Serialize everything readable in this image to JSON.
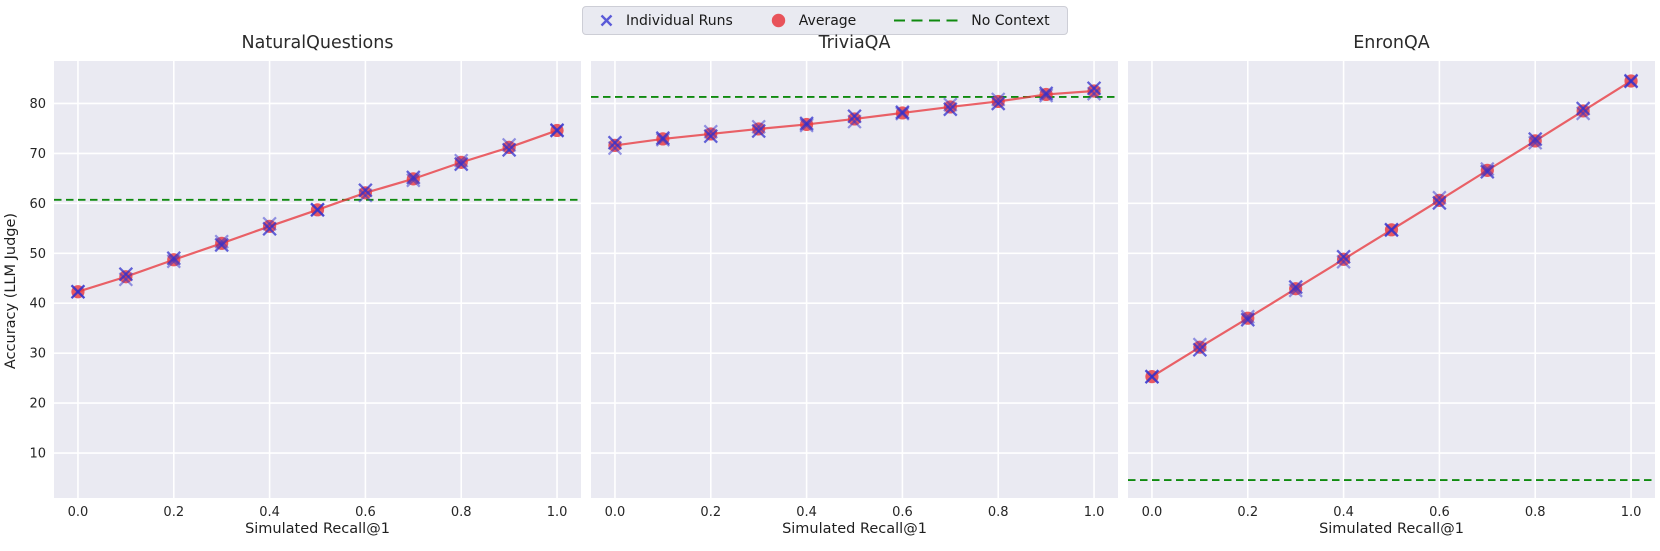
{
  "legend": {
    "position": "upper center (above subplots)",
    "items": [
      {
        "icon": "x-marker",
        "label": "Individual Runs",
        "color": "#5a5ad8"
      },
      {
        "icon": "circle-marker",
        "label": "Average",
        "color": "#e8383f"
      },
      {
        "icon": "dashed-line",
        "label": "No Context",
        "color": "#0f8a0f"
      }
    ]
  },
  "colors": {
    "panel_background": "#eaeaf2",
    "gridline": "#ffffff",
    "average_line": "#e8383f",
    "individual_runs": "#3232cd",
    "no_context_line": "#0f8a0f",
    "text": "#262626",
    "legend_background": "#e9eaf1",
    "legend_border": "#cdced6"
  },
  "chart_data": [
    {
      "type": "line",
      "title": "NaturalQuestions",
      "xlabel": "Simulated Recall@1",
      "ylabel": "Accuracy (LLM Judge)",
      "x": [
        0.0,
        0.1,
        0.2,
        0.3,
        0.4,
        0.5,
        0.6,
        0.7,
        0.8,
        0.9,
        1.0
      ],
      "series": [
        {
          "name": "Average",
          "marker": "circle",
          "values": [
            42.3,
            45.3,
            48.7,
            52.0,
            55.4,
            58.7,
            62.1,
            64.9,
            68.2,
            71.2,
            74.6
          ]
        }
      ],
      "individual_runs_visible": true,
      "individual_runs_jitter": 0.6,
      "no_context": 60.7,
      "x_ticks": [
        0.0,
        0.2,
        0.4,
        0.6,
        0.8,
        1.0
      ],
      "y_ticks": [
        10,
        20,
        30,
        40,
        50,
        60,
        70,
        80
      ],
      "xlim": [
        -0.05,
        1.05
      ],
      "ylim": [
        1.0,
        88.5
      ],
      "grid": true
    },
    {
      "type": "line",
      "title": "TriviaQA",
      "xlabel": "Simulated Recall@1",
      "ylabel": "Accuracy (LLM Judge)",
      "x": [
        0.0,
        0.1,
        0.2,
        0.3,
        0.4,
        0.5,
        0.6,
        0.7,
        0.8,
        0.9,
        1.0
      ],
      "series": [
        {
          "name": "Average",
          "marker": "circle",
          "values": [
            71.6,
            72.9,
            73.9,
            74.9,
            75.8,
            76.9,
            78.1,
            79.3,
            80.4,
            81.8,
            82.5
          ]
        }
      ],
      "individual_runs_visible": true,
      "individual_runs_jitter": 0.6,
      "no_context": 81.3,
      "x_ticks": [
        0.0,
        0.2,
        0.4,
        0.6,
        0.8,
        1.0
      ],
      "y_ticks": [
        10,
        20,
        30,
        40,
        50,
        60,
        70,
        80
      ],
      "xlim": [
        -0.05,
        1.05
      ],
      "ylim": [
        1.0,
        88.5
      ],
      "grid": true
    },
    {
      "type": "line",
      "title": "EnronQA",
      "xlabel": "Simulated Recall@1",
      "ylabel": "Accuracy (LLM Judge)",
      "x": [
        0.0,
        0.1,
        0.2,
        0.3,
        0.4,
        0.5,
        0.6,
        0.7,
        0.8,
        0.9,
        1.0
      ],
      "series": [
        {
          "name": "Average",
          "marker": "circle",
          "values": [
            25.3,
            31.2,
            37.0,
            42.9,
            48.8,
            54.7,
            60.6,
            66.6,
            72.5,
            78.5,
            84.5
          ]
        }
      ],
      "individual_runs_visible": true,
      "individual_runs_jitter": 0.6,
      "no_context": 4.6,
      "x_ticks": [
        0.0,
        0.2,
        0.4,
        0.6,
        0.8,
        1.0
      ],
      "y_ticks": [
        10,
        20,
        30,
        40,
        50,
        60,
        70,
        80
      ],
      "xlim": [
        -0.05,
        1.05
      ],
      "ylim": [
        1.0,
        88.5
      ],
      "grid": true
    }
  ]
}
